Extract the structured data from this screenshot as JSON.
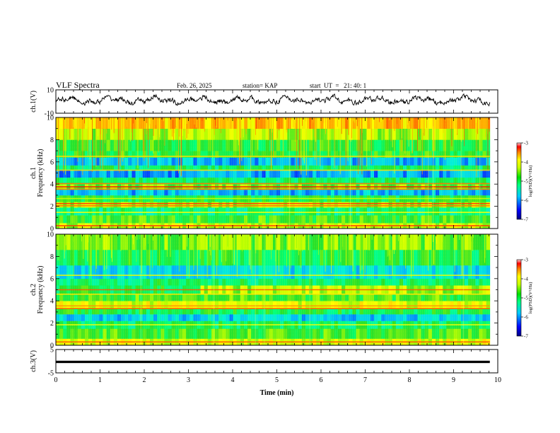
{
  "header": {
    "title": "VLF Spectra",
    "date": "Feb. 26, 2025",
    "station": "station= KAP",
    "start": "start  UT  =   21: 40: 1"
  },
  "colors": {
    "spectrogram_scale": [
      "#000080",
      "#0000ff",
      "#00c8ff",
      "#00ff80",
      "#00e000",
      "#c8ff00",
      "#ffff00",
      "#ff8000",
      "#ff0000",
      "#c80000"
    ],
    "background_band": "#30e040",
    "axis": "#000000"
  },
  "chart_data": [
    {
      "type": "line",
      "name": "ch1-waveform",
      "ylabel": "ch.1(V)",
      "ylim": [
        -10,
        10
      ],
      "yticks": [
        "10",
        "-10"
      ],
      "xlim": [
        0,
        10
      ],
      "data_end_min": 9.82,
      "values_approx": "noisy signal oscillating roughly between -4 and 6 V with mean near 1 V"
    },
    {
      "type": "heatmap",
      "name": "ch1-spectrogram",
      "ylabel": "ch.1\nFrequency (kHz)",
      "ylim": [
        0,
        10
      ],
      "yticks": [
        "0",
        "2",
        "4",
        "6",
        "8",
        "10"
      ],
      "xlim": [
        0,
        10
      ],
      "data_end_min": 9.82,
      "colorbar": {
        "label": "log(PSD)(V²/Hz)",
        "ticks": [
          "-3",
          "-4",
          "-5",
          "-6",
          "-7"
        ],
        "range": [
          -7,
          -3
        ]
      },
      "bands": [
        {
          "from": 0.0,
          "to": 0.5,
          "level": -4.3
        },
        {
          "from": 0.5,
          "to": 1.2,
          "level": -4.8
        },
        {
          "from": 1.2,
          "to": 1.9,
          "level": -5.2
        },
        {
          "from": 1.9,
          "to": 2.4,
          "level": -4.4
        },
        {
          "from": 2.4,
          "to": 3.0,
          "level": -5.0
        },
        {
          "from": 3.0,
          "to": 3.5,
          "level": -5.9
        },
        {
          "from": 3.5,
          "to": 4.0,
          "level": -4.6
        },
        {
          "from": 4.0,
          "to": 4.6,
          "level": -5.1
        },
        {
          "from": 4.6,
          "to": 5.3,
          "level": -6.0
        },
        {
          "from": 5.3,
          "to": 5.7,
          "level": -5.1
        },
        {
          "from": 5.7,
          "to": 6.4,
          "level": -5.9
        },
        {
          "from": 6.4,
          "to": 7.0,
          "level": -4.9
        },
        {
          "from": 7.0,
          "to": 8.0,
          "level": -4.9
        },
        {
          "from": 8.0,
          "to": 9.0,
          "level": -4.4
        },
        {
          "from": 9.0,
          "to": 10.0,
          "level": -3.8
        }
      ],
      "lines": [
        {
          "f": 0.25,
          "level": -3.3
        },
        {
          "f": 1.45,
          "level": -4.0
        },
        {
          "f": 2.05,
          "level": -3.5
        },
        {
          "f": 2.25,
          "level": -3.3
        },
        {
          "f": 2.7,
          "level": -4.3
        },
        {
          "f": 3.55,
          "level": -3.5
        },
        {
          "f": 3.75,
          "level": -3.2
        },
        {
          "f": 4.05,
          "level": -3.5
        },
        {
          "f": 5.25,
          "level": -3.9
        },
        {
          "f": 6.5,
          "level": -3.9
        }
      ]
    },
    {
      "type": "heatmap",
      "name": "ch2-spectrogram",
      "ylabel": "ch.2\nFrequency (kHz)",
      "ylim": [
        0,
        10
      ],
      "yticks": [
        "0",
        "2",
        "4",
        "6",
        "8",
        "10"
      ],
      "xlim": [
        0,
        10
      ],
      "data_end_min": 9.82,
      "colorbar": {
        "label": "log(PSD)(V²/Hz)",
        "ticks": [
          "-3",
          "-4",
          "-5",
          "-6",
          "-7"
        ],
        "range": [
          -7,
          -3
        ]
      },
      "bands": [
        {
          "from": 0.0,
          "to": 0.6,
          "level": -4.2
        },
        {
          "from": 0.6,
          "to": 1.5,
          "level": -4.8
        },
        {
          "from": 1.5,
          "to": 2.2,
          "level": -5.1
        },
        {
          "from": 2.2,
          "to": 2.8,
          "level": -5.8
        },
        {
          "from": 2.8,
          "to": 3.3,
          "level": -5.0
        },
        {
          "from": 3.3,
          "to": 4.0,
          "level": -4.2
        },
        {
          "from": 4.0,
          "to": 4.6,
          "level": -4.8
        },
        {
          "from": 4.6,
          "to": 5.4,
          "level": -4.4
        },
        {
          "from": 5.4,
          "to": 6.0,
          "level": -5.1
        },
        {
          "from": 6.0,
          "to": 7.2,
          "level": -5.7
        },
        {
          "from": 7.2,
          "to": 8.6,
          "level": -5.0
        },
        {
          "from": 8.6,
          "to": 10.0,
          "level": -4.6
        }
      ],
      "lines": [
        {
          "f": 0.3,
          "level": -3.4
        },
        {
          "f": 1.85,
          "level": -4.0
        },
        {
          "f": 3.3,
          "level": -3.4
        },
        {
          "f": 3.55,
          "level": -3.6
        },
        {
          "f": 4.6,
          "level": -3.9
        },
        {
          "f": 5.0,
          "level": -3.4
        },
        {
          "f": 6.3,
          "level": -4.1
        }
      ]
    },
    {
      "type": "line",
      "name": "ch3-waveform",
      "ylabel": "ch.3(V)",
      "ylim": [
        -5,
        5
      ],
      "yticks": [
        "5",
        "-5"
      ],
      "xlim": [
        0,
        10
      ],
      "xlabel": "Time (min)",
      "xticks": [
        "0",
        "1",
        "2",
        "3",
        "4",
        "5",
        "6",
        "7",
        "8",
        "9",
        "10"
      ],
      "data_end_min": 9.82,
      "values_approx": "nearly constant thick trace around -0.3 V (range about -0.8 to 0.2 V)"
    }
  ]
}
